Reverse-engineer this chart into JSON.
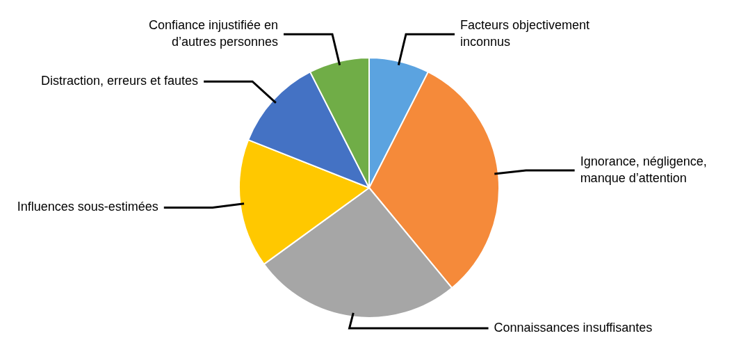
{
  "chart_data": {
    "type": "pie",
    "categories": [
      "Facteurs objectivement inconnus",
      "Ignorance, négligence, manque d’attention",
      "Connaissances insuffisantes",
      "Influences sous-estimées",
      "Distraction, erreurs et fautes",
      "Confiance injustifiée en d’autres personnes"
    ],
    "values": [
      7.5,
      31.5,
      26,
      16,
      11.5,
      7.5
    ],
    "colors": [
      "#5ba3e0",
      "#f58a3a",
      "#a6a6a6",
      "#ffc800",
      "#4472c4",
      "#70ad47"
    ],
    "legend": false
  }
}
